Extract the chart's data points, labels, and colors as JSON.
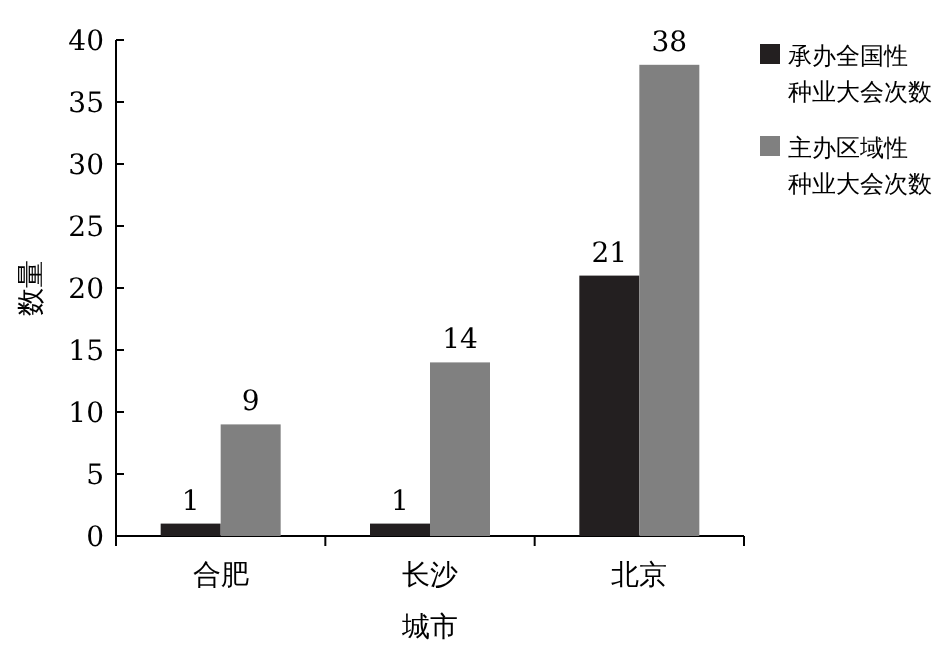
{
  "chart_data": {
    "type": "bar",
    "xlabel": "城市",
    "ylabel": "数量",
    "categories": [
      "合肥",
      "长沙",
      "北京"
    ],
    "series": [
      {
        "name": "承办全国性种业大会次数",
        "color": "#231f20",
        "values": [
          1,
          1,
          21
        ]
      },
      {
        "name": "主办区域性种业大会次数",
        "color": "#808080",
        "values": [
          9,
          14,
          38
        ]
      }
    ],
    "ylim": [
      0,
      40
    ],
    "yticks": [
      0,
      5,
      10,
      15,
      20,
      25,
      30,
      35,
      40
    ],
    "data_labels": true,
    "legend": "right",
    "grid": false
  }
}
